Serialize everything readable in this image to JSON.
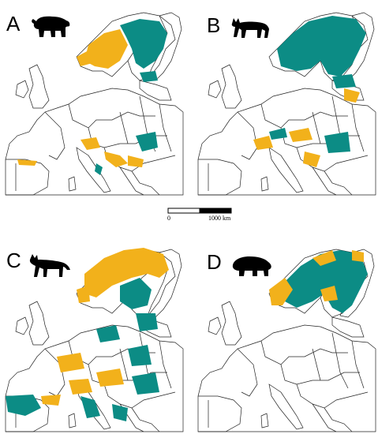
{
  "panels": [
    {
      "letter": "A",
      "animal": "bear-icon"
    },
    {
      "letter": "B",
      "animal": "lynx-icon"
    },
    {
      "letter": "C",
      "animal": "wolf-icon"
    },
    {
      "letter": "D",
      "animal": "wolverine-icon"
    }
  ],
  "scale": {
    "start": "0",
    "end": "1000 km"
  },
  "colors": {
    "teal": "#0c8c85",
    "gold": "#f2b11b",
    "border": "#222222"
  }
}
